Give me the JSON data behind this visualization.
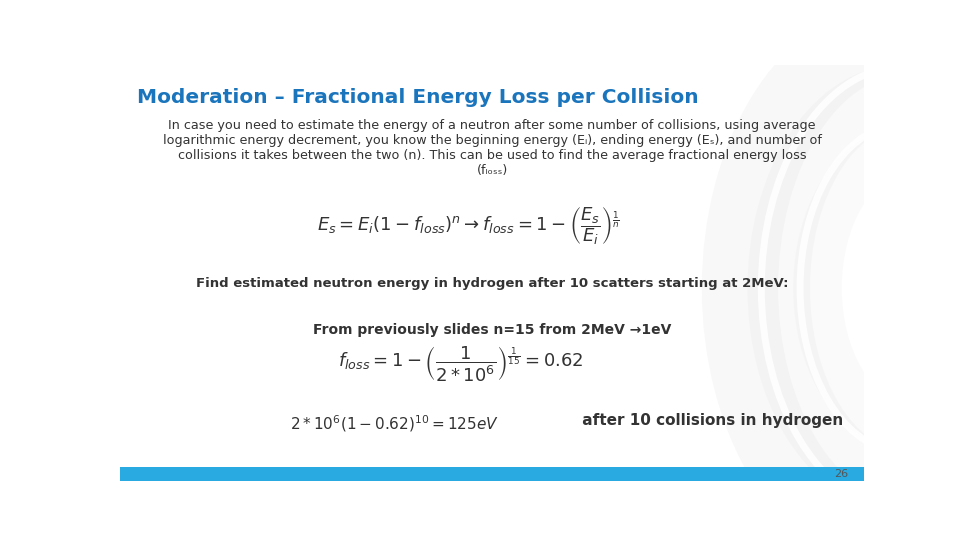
{
  "title": "Moderation – Fractional Energy Loss per Collision",
  "title_color": "#1B75BC",
  "background_color": "#FFFFFF",
  "footer_bar_color": "#29ABE2",
  "page_number": "26",
  "body_line1": "In case you need to estimate the energy of a neutron after some number of collisions, using average",
  "body_line2": "logarithmic energy decrement, you know the beginning energy (Eᵢ), ending energy (Eₛ), and number of",
  "body_line3": "collisions it takes between the two (n). This can be used to find the average fractional energy loss",
  "body_line4": "(fₗₒₛₛ)",
  "eq1": "$E_s = E_i(1 - f_{loss})^n \\rightarrow f_{loss} = 1 - \\left(\\dfrac{E_s}{E_i}\\right)^{\\frac{1}{n}}$",
  "find_text": "Find estimated neutron energy in hydrogen after 10 scatters starting at 2MeV:",
  "from_text": "From previously slides n=15 from 2MeV →1eV",
  "eq2": "$f_{loss} = 1 - \\left(\\dfrac{1}{2 * 10^6}\\right)^{\\frac{1}{15}} = 0.62$",
  "final_line1": "$2 * 10^6(1 - 0.62)^{10} = 125eV$",
  "final_line2": " after 10 collisions in hydrogen"
}
